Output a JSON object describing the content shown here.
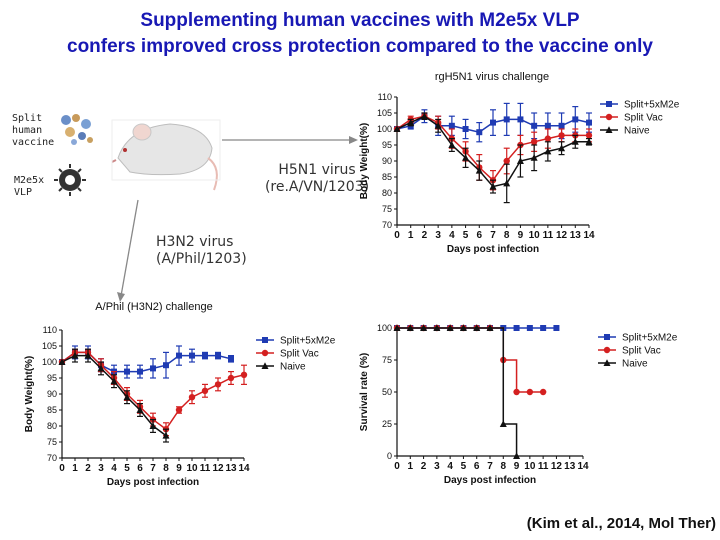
{
  "title": {
    "line1": "Supplementing human vaccines with M2e5x VLP",
    "line2": "confers improved cross protection compared to the vaccine only"
  },
  "labels": {
    "split_vaccine": [
      "Split",
      "human",
      "vaccine"
    ],
    "m2e5x_vlp": [
      "M2e5x",
      "VLP"
    ],
    "h5n1_virus": [
      "H5N1 virus",
      "(re.A/VN/1203)"
    ],
    "h3n2_virus": [
      "H3N2 virus",
      "(A/Phil/1203)"
    ]
  },
  "citation": "(Kim et al., 2014, Mol Ther)",
  "colors": {
    "blue": "#1f3bb3",
    "red": "#d42020",
    "black": "#111111"
  },
  "chart_data": [
    {
      "id": "h5n1",
      "type": "line",
      "title": "rgH5N1 virus challenge",
      "xlabel": "Days post infection",
      "ylabel": "Body Weight(%)",
      "x": [
        0,
        1,
        2,
        3,
        4,
        5,
        6,
        7,
        8,
        9,
        10,
        11,
        12,
        13,
        14
      ],
      "xlim": [
        0,
        14
      ],
      "ylim": [
        70,
        110
      ],
      "yticks": [
        70,
        75,
        80,
        85,
        90,
        95,
        100,
        105,
        110
      ],
      "series": [
        {
          "name": "Split+5xM2e",
          "color": "#1f3bb3",
          "marker": "square",
          "values": [
            100,
            101,
            104,
            101,
            101,
            100,
            99,
            102,
            103,
            103,
            101,
            101,
            101,
            103,
            102
          ],
          "errors": [
            0,
            1,
            2,
            3,
            3,
            3,
            3,
            4,
            5,
            5,
            4,
            4,
            4,
            4,
            3
          ]
        },
        {
          "name": "Split Vac",
          "color": "#d42020",
          "marker": "circle",
          "values": [
            100,
            103,
            104,
            102,
            97,
            93,
            88,
            84,
            90,
            95,
            96,
            97,
            98,
            98,
            98
          ],
          "errors": [
            0,
            1,
            1,
            2,
            3,
            3,
            4,
            3,
            4,
            3,
            3,
            3,
            2,
            2,
            2
          ]
        },
        {
          "name": "Naive",
          "color": "#111111",
          "marker": "triangle",
          "values": [
            100,
            102,
            104,
            101,
            95,
            91,
            87,
            82,
            83,
            90,
            91,
            93,
            94,
            96,
            96
          ],
          "errors": [
            0,
            1,
            1,
            2,
            2,
            3,
            3,
            2,
            6,
            5,
            4,
            3,
            2,
            2,
            1
          ]
        }
      ]
    },
    {
      "id": "h3n2",
      "type": "line",
      "title": "A/Phil (H3N2) challenge",
      "xlabel": "Days post infection",
      "ylabel": "Body Weight(%)",
      "x": [
        0,
        1,
        2,
        3,
        4,
        5,
        6,
        7,
        8,
        9,
        10,
        11,
        12,
        13,
        14
      ],
      "xlim": [
        0,
        14
      ],
      "ylim": [
        70,
        110
      ],
      "yticks": [
        70,
        75,
        80,
        85,
        90,
        95,
        100,
        105,
        110
      ],
      "series": [
        {
          "name": "Split+5xM2e",
          "color": "#1f3bb3",
          "marker": "square",
          "values": [
            100,
            103,
            103,
            99,
            97,
            97,
            97,
            98,
            99,
            102,
            102,
            102,
            102,
            101,
            null
          ],
          "errors": [
            0,
            2,
            2,
            2,
            2,
            2,
            2,
            3,
            4,
            3,
            2,
            1,
            1,
            1,
            0
          ]
        },
        {
          "name": "Split Vac",
          "color": "#d42020",
          "marker": "circle",
          "values": [
            100,
            103,
            103,
            99,
            95,
            90,
            86,
            82,
            79,
            85,
            89,
            91,
            93,
            95,
            96
          ],
          "errors": [
            0,
            1,
            1,
            2,
            2,
            2,
            2,
            2,
            2,
            1,
            2,
            2,
            2,
            2,
            3
          ]
        },
        {
          "name": "Naive",
          "color": "#111111",
          "marker": "triangle",
          "values": [
            100,
            102,
            102,
            98,
            94,
            89,
            85,
            80,
            77,
            null,
            null,
            null,
            null,
            null,
            null
          ],
          "errors": [
            0,
            2,
            2,
            2,
            2,
            2,
            2,
            2,
            2,
            0,
            0,
            0,
            0,
            0,
            0
          ]
        }
      ]
    },
    {
      "id": "survival",
      "type": "line",
      "title": "",
      "xlabel": "Days post infection",
      "ylabel": "Survival rate (%)",
      "x": [
        0,
        1,
        2,
        3,
        4,
        5,
        6,
        7,
        8,
        9,
        10,
        11,
        12,
        13,
        14
      ],
      "xlim": [
        0,
        14
      ],
      "ylim": [
        0,
        100
      ],
      "yticks": [
        0,
        25,
        50,
        75,
        100
      ],
      "series": [
        {
          "name": "Split+5xM2e",
          "color": "#1f3bb3",
          "marker": "square",
          "x": [
            0,
            1,
            2,
            3,
            4,
            5,
            6,
            7,
            8,
            9,
            10,
            11,
            12
          ],
          "values": [
            100,
            100,
            100,
            100,
            100,
            100,
            100,
            100,
            100,
            100,
            100,
            100,
            100
          ]
        },
        {
          "name": "Split Vac",
          "color": "#d42020",
          "marker": "circle",
          "x": [
            0,
            1,
            2,
            3,
            4,
            5,
            6,
            7,
            8,
            9,
            10,
            11
          ],
          "values": [
            100,
            100,
            100,
            100,
            100,
            100,
            100,
            100,
            75,
            50,
            50,
            50
          ]
        },
        {
          "name": "Naive",
          "color": "#111111",
          "marker": "triangle",
          "x": [
            0,
            1,
            2,
            3,
            4,
            5,
            6,
            7,
            8,
            9
          ],
          "values": [
            100,
            100,
            100,
            100,
            100,
            100,
            100,
            100,
            25,
            0
          ]
        }
      ]
    }
  ]
}
